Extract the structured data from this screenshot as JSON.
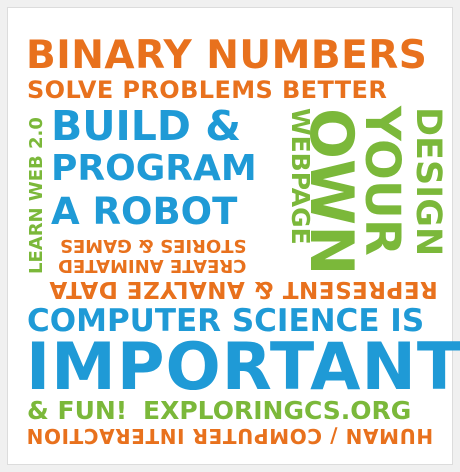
{
  "colors": {
    "orange": "#e8711d",
    "blue": "#1f9ad6",
    "green": "#7bb83a"
  },
  "lines": {
    "binary_numbers": "BINARY NUMBERS",
    "solve_problems": "SOLVE PROBLEMS BETTER",
    "build": "BUILD &",
    "program": "PROGRAM",
    "a_robot": "A ROBOT",
    "create_animated": "CREATE ANIMATED",
    "stories_games": "STORIES & GAMES",
    "learn_web": "LEARN WEB 2.0",
    "webpage": "WEBPAGE",
    "own": "OWN",
    "your": "YOUR",
    "design": "DESIGN",
    "represent_analyze": "REPRESENT & ANALYZE DATA",
    "computer_science_is": "COMPUTER SCIENCE IS",
    "important": "IMPORTANT",
    "and_fun": "& FUN!",
    "exploringcs": "EXPLORINGCS.ORG",
    "hci": "HUMAN / COMPUTER INTERACTION"
  }
}
